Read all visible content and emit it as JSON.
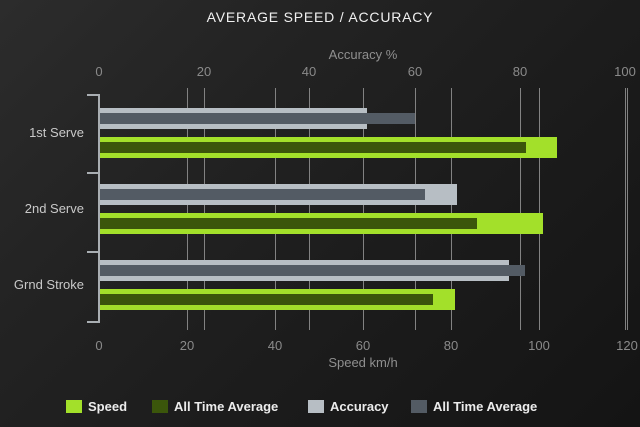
{
  "chart_data": {
    "type": "bar",
    "orientation": "horizontal",
    "title": "AVERAGE SPEED / ACCURACY",
    "categories": [
      "1st Serve",
      "2nd Serve",
      "Grnd Stroke"
    ],
    "axes": {
      "top": {
        "label": "Accuracy %",
        "min": 0,
        "max": 100,
        "ticks": [
          0,
          20,
          40,
          60,
          80,
          100
        ]
      },
      "bottom": {
        "label": "Speed km/h",
        "min": 0,
        "max": 120,
        "ticks": [
          0,
          20,
          40,
          60,
          80,
          100,
          120
        ]
      }
    },
    "series": [
      {
        "name": "Speed",
        "axis": "bottom",
        "role": "main",
        "color": "#a3e02a",
        "values": [
          104,
          101,
          81
        ]
      },
      {
        "name": "All Time Average",
        "axis": "bottom",
        "role": "overlay",
        "color": "#3b560b",
        "values": [
          97,
          86,
          76
        ]
      },
      {
        "name": "Accuracy",
        "axis": "top",
        "role": "main",
        "color": "#b7bec4",
        "values": [
          51,
          68,
          78
        ]
      },
      {
        "name": "All Time Average",
        "axis": "top",
        "role": "overlay",
        "color": "#535b64",
        "values": [
          60,
          62,
          81
        ]
      }
    ],
    "legend": [
      {
        "label": "Speed",
        "color": "#a3e02a"
      },
      {
        "label": "All Time Average",
        "color": "#3b560b"
      },
      {
        "label": "Accuracy",
        "color": "#b7bec4"
      },
      {
        "label": "All Time Average",
        "color": "#535b64"
      }
    ],
    "grid": true,
    "legend_position": "bottom"
  }
}
